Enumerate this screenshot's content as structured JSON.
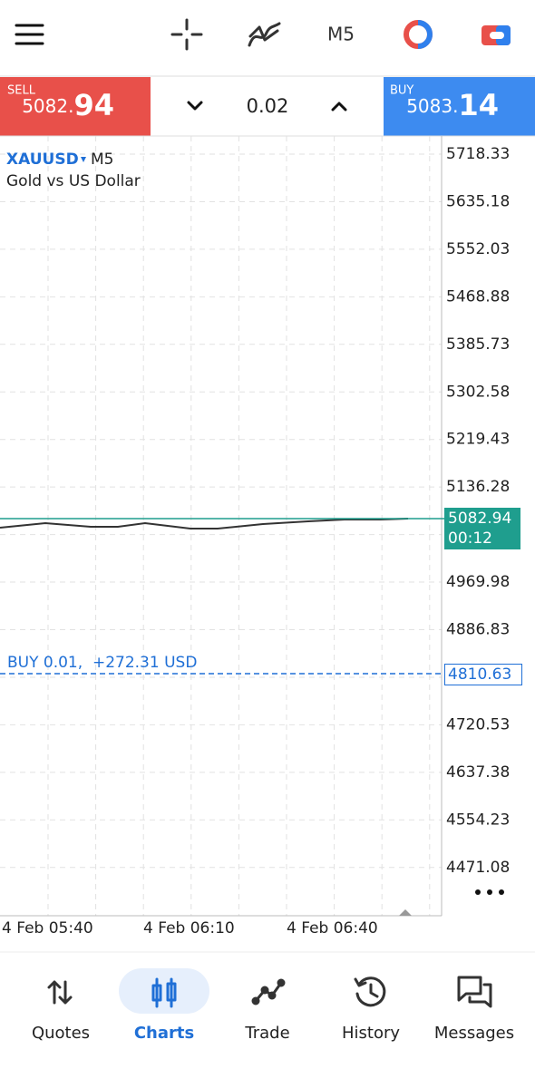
{
  "toolbar": {
    "timeframe": "M5"
  },
  "trade_panel": {
    "sell": {
      "label": "SELL",
      "price_main": "5082.",
      "price_big": "94"
    },
    "volume": "0.02",
    "buy": {
      "label": "BUY",
      "price_main": "5083.",
      "price_big": "14"
    }
  },
  "chart": {
    "symbol": "XAUUSD",
    "timeframe": "M5",
    "description": "Gold vs US Dollar",
    "price_axis": [
      "5718.33",
      "5635.18",
      "5552.03",
      "5468.88",
      "5385.73",
      "5302.58",
      "5219.43",
      "5136.28",
      "4969.98",
      "4886.83",
      "4720.53",
      "4637.38",
      "4554.23",
      "4471.08"
    ],
    "current_price": {
      "price": "5082.94",
      "countdown": "00:12"
    },
    "position": {
      "label": "BUY 0.01,  +272.31 USD",
      "price": "4810.63"
    },
    "time_axis": [
      "4 Feb 05:40",
      "4 Feb 06:10",
      "4 Feb 06:40"
    ]
  },
  "nav": {
    "items": [
      {
        "label": "Quotes",
        "active": false
      },
      {
        "label": "Charts",
        "active": true
      },
      {
        "label": "Trade",
        "active": false
      },
      {
        "label": "History",
        "active": false
      },
      {
        "label": "Messages",
        "active": false
      }
    ]
  }
}
